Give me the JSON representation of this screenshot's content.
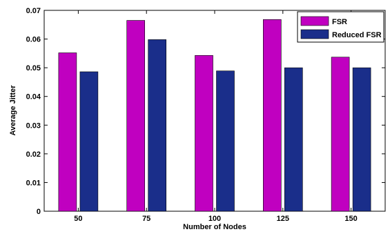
{
  "chart_data": {
    "type": "bar",
    "xlabel": "Number of Nodes",
    "ylabel": "Average Jitter",
    "categories": [
      "50",
      "75",
      "100",
      "125",
      "150"
    ],
    "series": [
      {
        "name": "FSR",
        "values": [
          0.0552,
          0.0665,
          0.0543,
          0.0668,
          0.0537
        ],
        "color": "#c000c0"
      },
      {
        "name": "Reduced FSR",
        "values": [
          0.0486,
          0.0598,
          0.0489,
          0.05,
          0.05
        ],
        "color": "#1a2e8a"
      }
    ],
    "ylim": [
      0,
      0.07
    ],
    "yticks": [
      "0",
      "0.01",
      "0.02",
      "0.03",
      "0.04",
      "0.05",
      "0.06",
      "0.07"
    ],
    "legend_position": "top-right",
    "grid": false
  }
}
